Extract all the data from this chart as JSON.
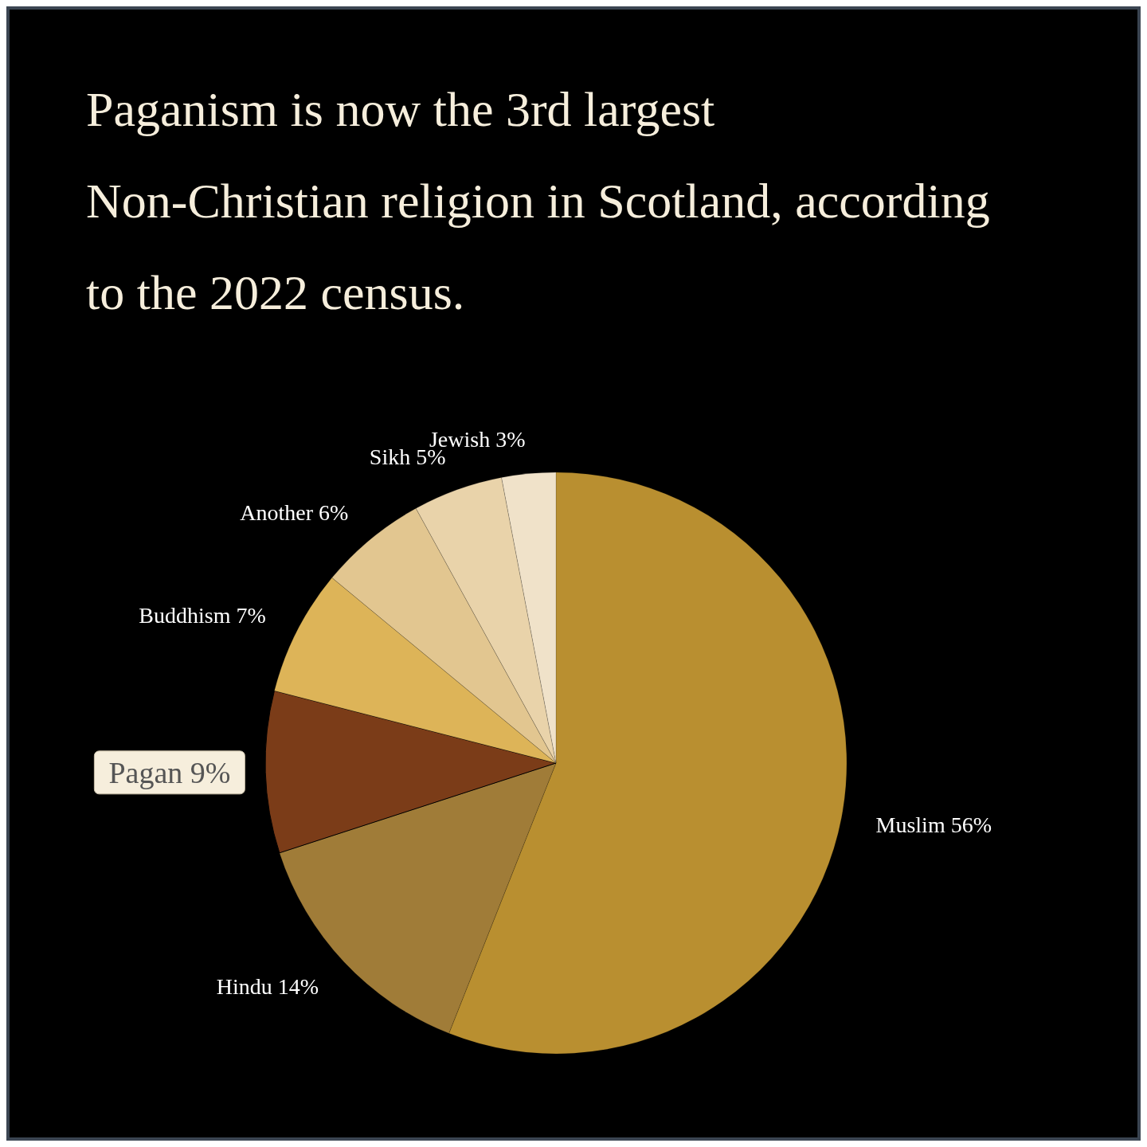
{
  "chart_data": {
    "type": "pie",
    "title": "Paganism is now the 3rd largest Non-Christian religion in Scotland, according to the 2022 census.",
    "categories": [
      "Muslim",
      "Hindu",
      "Pagan",
      "Buddhism",
      "Another",
      "Sikh",
      "Jewish"
    ],
    "values": [
      56,
      14,
      9,
      7,
      6,
      5,
      3
    ],
    "value_labels": [
      "56%",
      "14%",
      "9%",
      "7%",
      "6%",
      "5%",
      "3%"
    ],
    "colors": [
      "#b98f30",
      "#a07c38",
      "#7b3c18",
      "#ddb458",
      "#e2c690",
      "#e9d3aa",
      "#f0e2c9"
    ]
  }
}
